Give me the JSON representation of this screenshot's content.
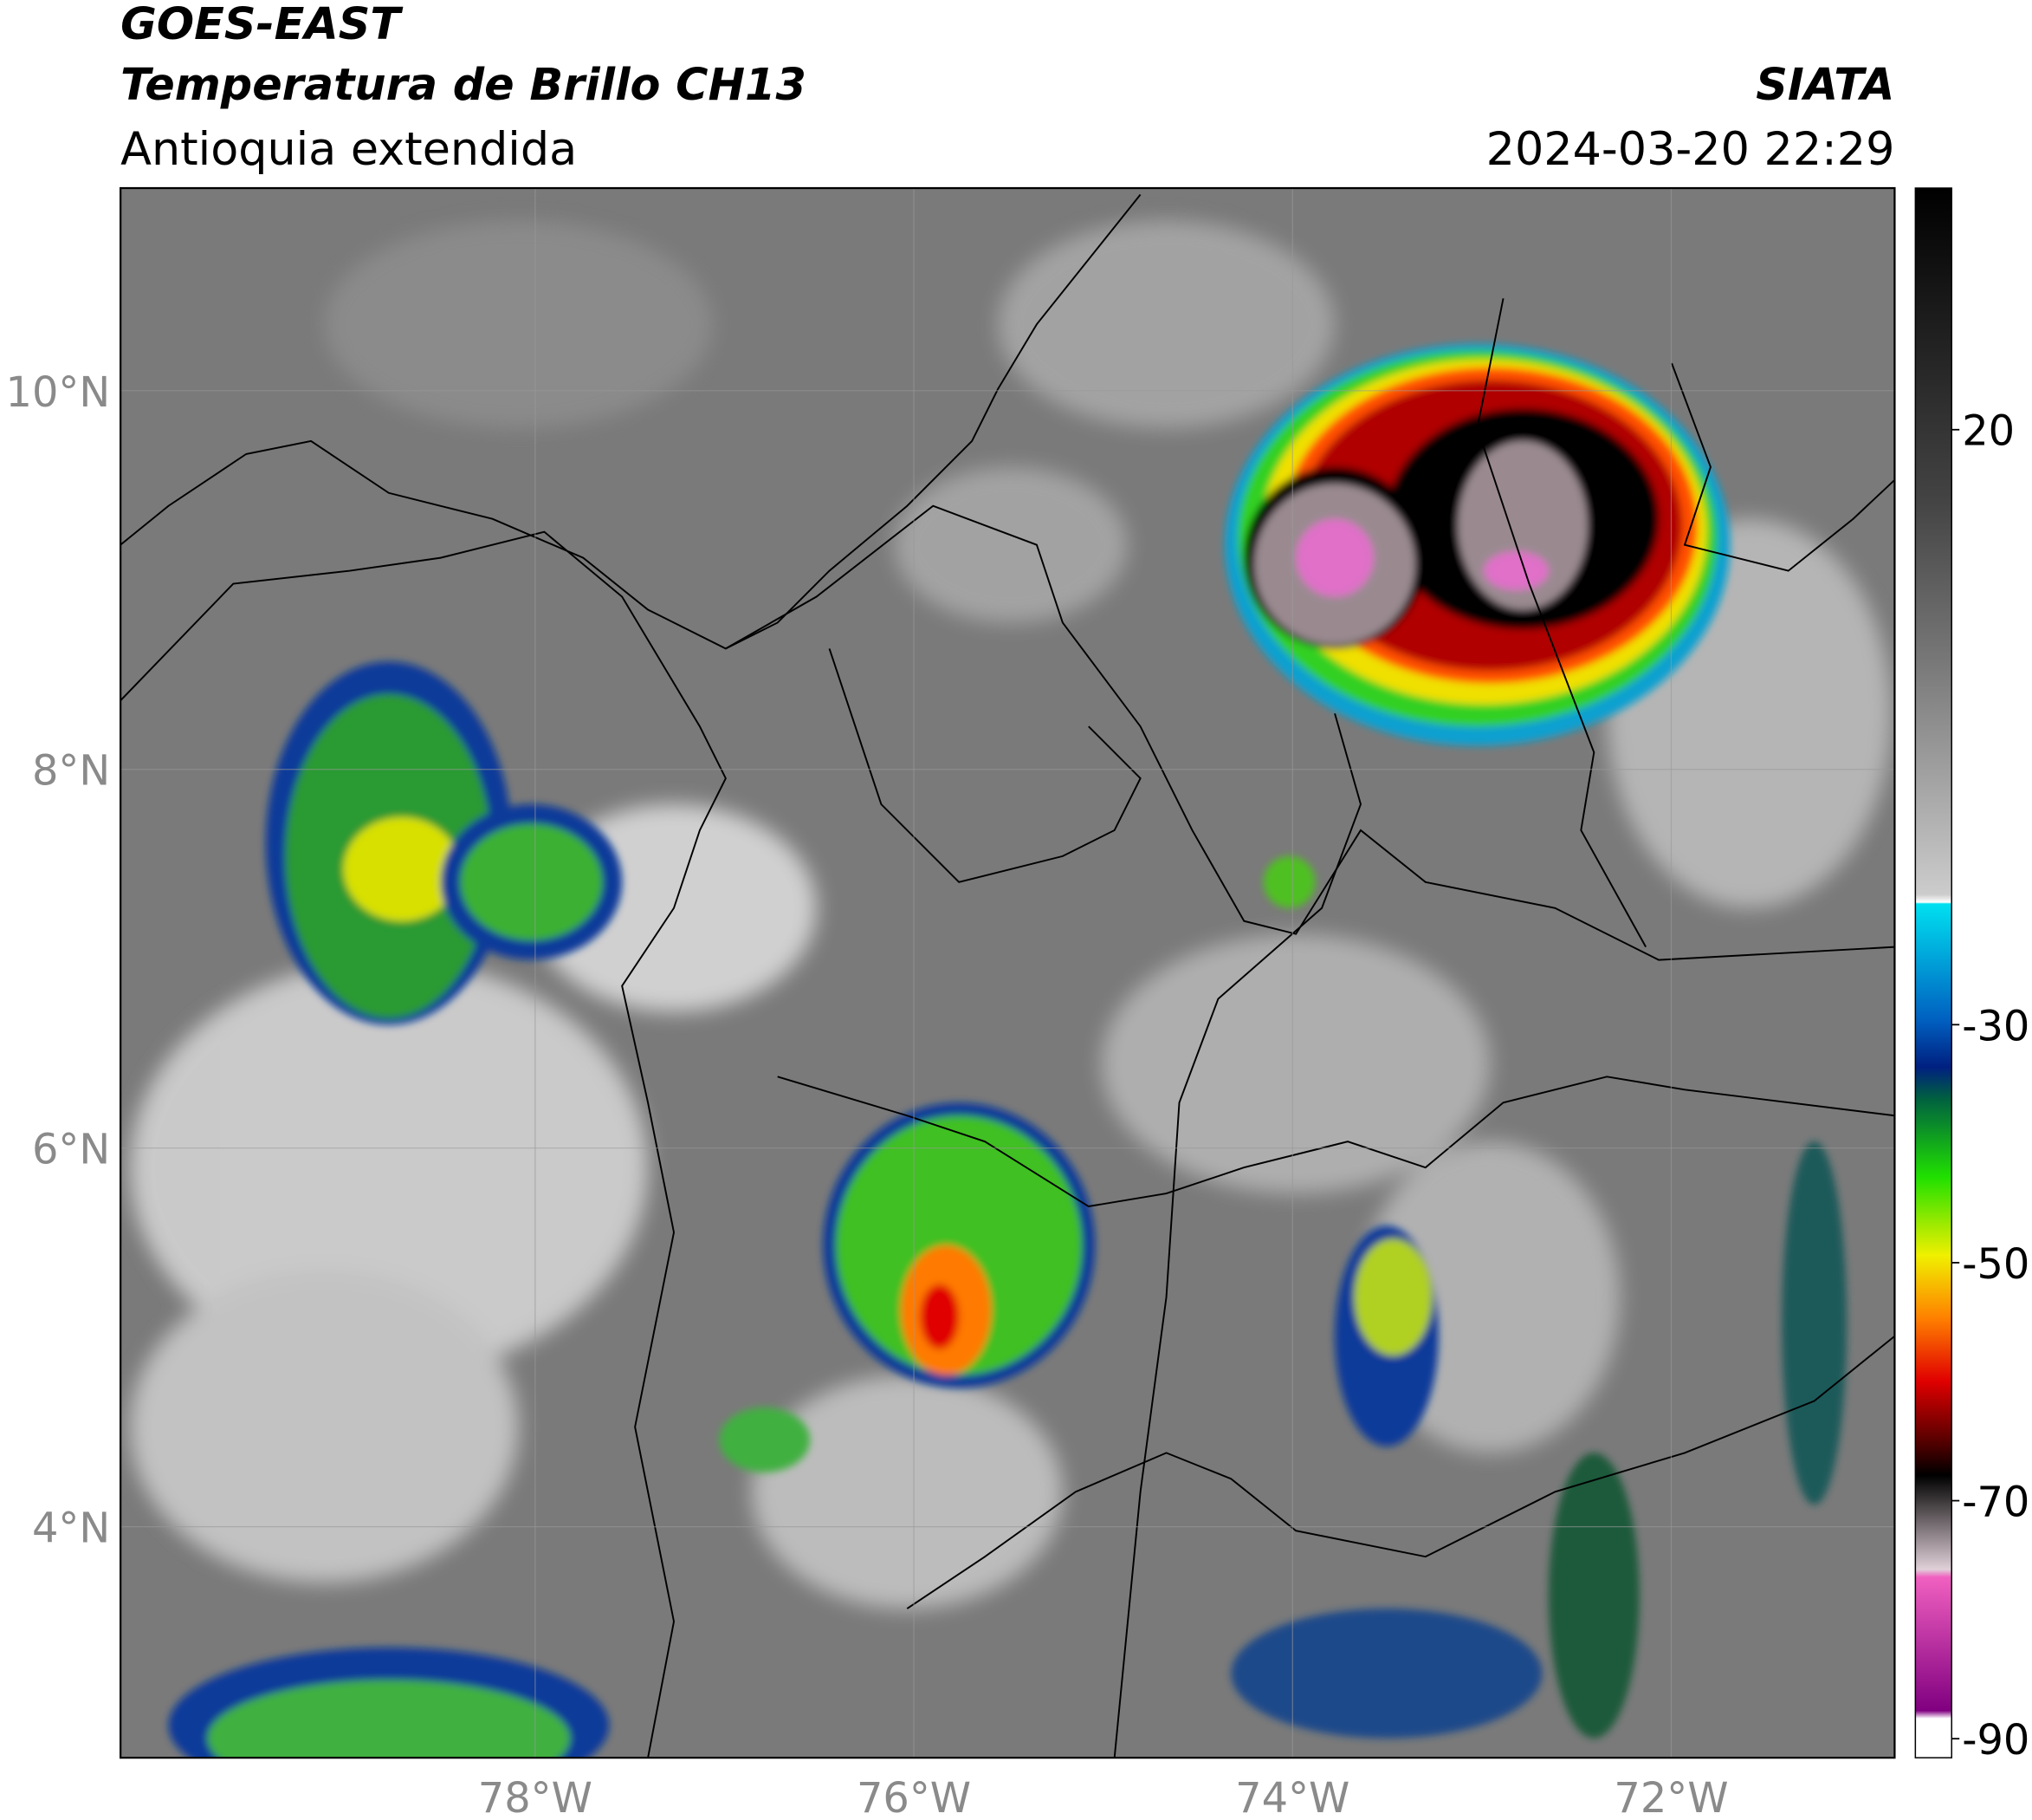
{
  "header": {
    "title": "GOES-EAST",
    "subtitle": "Temperatura de Brillo CH13",
    "region": "Antioquia extendida",
    "source": "SIATA",
    "timestamp": "2024-03-20 22:29"
  },
  "map": {
    "xlim": [
      -80.19,
      -70.82
    ],
    "ylim": [
      2.78,
      11.07
    ],
    "xticks": [
      {
        "value": -78,
        "label": "78°W"
      },
      {
        "value": -76,
        "label": "76°W"
      },
      {
        "value": -74,
        "label": "74°W"
      },
      {
        "value": -72,
        "label": "72°W"
      }
    ],
    "yticks": [
      {
        "value": 4,
        "label": "4°N"
      },
      {
        "value": 6,
        "label": "6°N"
      },
      {
        "value": 8,
        "label": "8°N"
      },
      {
        "value": 10,
        "label": "10°N"
      }
    ],
    "grid": true
  },
  "colorbar": {
    "clim": [
      -91.6,
      40.3
    ],
    "ticks": [
      20,
      -30,
      -50,
      -70,
      -90
    ]
  }
}
